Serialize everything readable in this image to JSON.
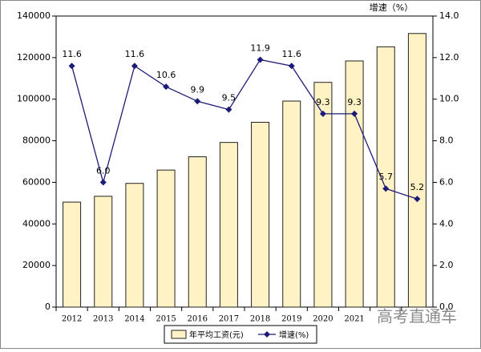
{
  "chart_data": {
    "type": "bar",
    "y2_label": "增速（%）",
    "categories": [
      "2012",
      "2013",
      "2014",
      "2015",
      "2016",
      "2017",
      "2018",
      "2019",
      "2020",
      "2021",
      null,
      null
    ],
    "series": [
      {
        "name": "年平均工资(元)",
        "type": "bar",
        "color": "#fff2c4",
        "values": [
          50500,
          53300,
          59500,
          65900,
          72300,
          79200,
          88900,
          99100,
          108100,
          118400,
          125200,
          131600
        ]
      },
      {
        "name": "增速(%)",
        "type": "line",
        "axis": "y2",
        "color": "#1c1c78",
        "values": [
          11.6,
          6.0,
          11.6,
          10.6,
          9.9,
          9.5,
          11.9,
          11.6,
          9.3,
          9.3,
          5.7,
          5.2
        ],
        "value_labels": [
          "11.6",
          "6.0",
          "11.6",
          "10.6",
          "9.9",
          "9.5",
          "11.9",
          "11.6",
          "9.3",
          "9.3",
          "5.7",
          "5.2"
        ]
      }
    ],
    "ylim": [
      0,
      140000
    ],
    "yticks": [
      0,
      20000,
      40000,
      60000,
      80000,
      100000,
      120000,
      140000
    ],
    "y2lim": [
      0,
      14
    ],
    "y2ticks": [
      {
        "value": 0,
        "label": "0.0"
      },
      {
        "value": 2,
        "label": "2.0"
      },
      {
        "value": 4,
        "label": "4.0"
      },
      {
        "value": 6,
        "label": "6.0"
      },
      {
        "value": 8,
        "label": "8.0"
      },
      {
        "value": 10,
        "label": "10.0"
      },
      {
        "value": 12,
        "label": "12.0"
      },
      {
        "value": 14,
        "label": "14.0"
      }
    ],
    "watermark": "高考直通车"
  }
}
